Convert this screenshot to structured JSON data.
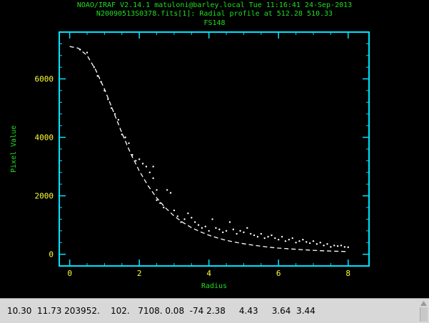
{
  "window": {
    "title_lines": [
      "NOAO/IRAF V2.14.1 matuloni@barley.local Tue 11:16:41 24-Sep-2013",
      "N20090513S0378.fits[1]: Radial profile at 512.28 510.33",
      "FS148"
    ]
  },
  "status_bar": {
    "text": "10.30  11.73 203952.    102.   7108. 0.08  -74 2.38     4.43     3.64  3.44"
  },
  "colors": {
    "frame": "#00e5ff",
    "tick_labels": "#ffff33",
    "axis_labels": "#22dd22",
    "title": "#22dd22",
    "data": "#ffffff"
  },
  "chart_data": {
    "type": "scatter",
    "xlabel": "Radius",
    "ylabel": "Pixel Value",
    "xlim": [
      -0.3,
      8.6
    ],
    "ylim": [
      -400,
      7600
    ],
    "xticks": [
      0,
      2,
      4,
      6,
      8
    ],
    "yticks": [
      0,
      2000,
      4000,
      6000
    ],
    "grid": false,
    "series": [
      {
        "style": "points",
        "x": [
          0.3,
          0.5,
          0.7,
          0.8,
          0.9,
          1.0,
          1.1,
          1.2,
          1.3,
          1.4,
          1.5,
          1.6,
          1.7,
          1.8,
          1.9,
          2.0,
          2.1,
          2.2,
          2.3,
          2.4,
          2.4,
          2.5,
          2.5,
          2.6,
          2.7,
          2.8,
          2.9,
          3.0,
          3.1,
          3.2,
          3.3,
          3.4,
          3.5,
          3.6,
          3.7,
          3.8,
          3.9,
          4.0,
          4.1,
          4.2,
          4.3,
          4.4,
          4.5,
          4.6,
          4.7,
          4.8,
          4.9,
          5.0,
          5.1,
          5.2,
          5.3,
          5.4,
          5.5,
          5.6,
          5.7,
          5.8,
          5.9,
          6.0,
          6.1,
          6.2,
          6.3,
          6.4,
          6.5,
          6.6,
          6.7,
          6.8,
          6.9,
          7.0,
          7.1,
          7.2,
          7.3,
          7.4,
          7.5,
          7.6,
          7.7,
          7.8,
          7.9,
          8.0
        ],
        "y": [
          7000,
          6900,
          6400,
          6100,
          5900,
          5600,
          5300,
          5000,
          4800,
          4600,
          4100,
          4000,
          3800,
          3400,
          3200,
          3250,
          3100,
          3000,
          2800,
          2600,
          3000,
          2200,
          1850,
          1750,
          1600,
          2200,
          2100,
          1500,
          1300,
          1100,
          1200,
          1400,
          1250,
          1100,
          1000,
          900,
          950,
          800,
          1200,
          900,
          850,
          750,
          800,
          1100,
          850,
          700,
          800,
          750,
          900,
          700,
          650,
          600,
          700,
          550,
          600,
          650,
          550,
          500,
          600,
          450,
          500,
          550,
          400,
          450,
          500,
          420,
          380,
          450,
          350,
          400,
          300,
          350,
          250,
          300,
          280,
          300,
          250,
          240
        ]
      },
      {
        "style": "dashed",
        "x": [
          0.0,
          0.25,
          0.5,
          0.75,
          1.0,
          1.25,
          1.5,
          1.75,
          2.0,
          2.25,
          2.5,
          2.75,
          3.0,
          3.25,
          3.5,
          3.75,
          4.0,
          4.25,
          4.5,
          4.75,
          5.0,
          5.25,
          5.5,
          5.75,
          6.0,
          6.25,
          6.5,
          6.75,
          7.0,
          7.25,
          7.5,
          7.75,
          8.0
        ],
        "y": [
          7108,
          7050,
          6800,
          6300,
          5650,
          4900,
          4150,
          3450,
          2850,
          2350,
          1930,
          1590,
          1310,
          1090,
          910,
          770,
          650,
          555,
          475,
          415,
          360,
          315,
          275,
          240,
          210,
          190,
          170,
          150,
          135,
          120,
          110,
          100,
          90
        ]
      }
    ]
  }
}
